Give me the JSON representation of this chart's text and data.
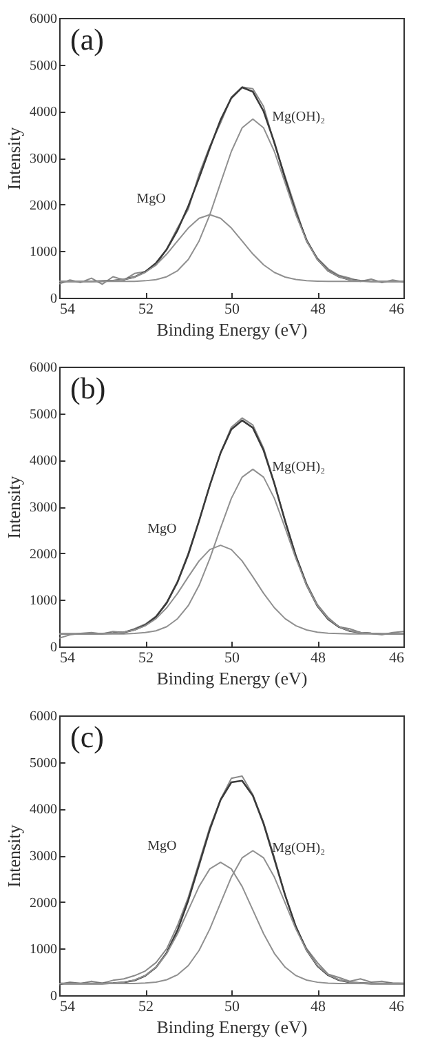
{
  "chart_data": [
    {
      "type": "line",
      "xlabel": "Binding Energy (eV)",
      "ylabel": "Intensity",
      "annotations": [
        "(a)"
      ],
      "xlim": [
        54,
        46
      ],
      "xticks": [
        54,
        52,
        50,
        48,
        46
      ],
      "ylim": [
        0,
        6000
      ],
      "yticks": [
        0,
        1000,
        2000,
        3000,
        4000,
        5000,
        6000
      ],
      "x": [
        54,
        53.75,
        53.5,
        53.25,
        53,
        52.75,
        52.5,
        52.25,
        52,
        51.75,
        51.5,
        51.25,
        51,
        50.75,
        50.5,
        50.25,
        50,
        49.75,
        49.5,
        49.25,
        49,
        48.75,
        48.5,
        48.25,
        48,
        47.75,
        47.5,
        47.25,
        47,
        46.75,
        46.5,
        46.25,
        46
      ],
      "series": [
        {
          "color": "#8a8a8a",
          "values": [
            300,
            380,
            330,
            420,
            290,
            450,
            380,
            520,
            560,
            700,
            1050,
            1500,
            1900,
            2650,
            3250,
            3750,
            4300,
            4520,
            4480,
            4100,
            3300,
            2600,
            1900,
            1200,
            850,
            620,
            480,
            420,
            350,
            400,
            330,
            380,
            340
          ]
        },
        {
          "color": "#3a3a3a",
          "values": [
            350,
            350,
            350,
            350,
            356,
            366,
            391,
            445,
            557,
            744,
            1039,
            1448,
            1965,
            2570,
            3210,
            3815,
            4282,
            4510,
            4418,
            3998,
            3330,
            2556,
            1821,
            1233,
            826,
            580,
            451,
            388,
            364,
            351,
            350,
            350,
            350
          ]
        },
        {
          "name": "MgO",
          "color": "#909090",
          "values": [
            350,
            350,
            350,
            350,
            356,
            366,
            391,
            444,
            543,
            706,
            938,
            1218,
            1495,
            1703,
            1780,
            1703,
            1495,
            1218,
            938,
            706,
            543,
            444,
            391,
            366,
            356,
            350,
            350,
            350,
            350,
            350,
            350,
            350,
            350
          ]
        },
        {
          "name": "Mg(OH)₂",
          "color": "#909090",
          "values": [
            350,
            350,
            350,
            350,
            350,
            350,
            350,
            351,
            364,
            388,
            451,
            580,
            820,
            1217,
            1780,
            2462,
            3137,
            3642,
            3830,
            3642,
            3137,
            2462,
            1780,
            1217,
            820,
            580,
            451,
            388,
            364,
            351,
            350,
            350,
            350
          ]
        }
      ]
    },
    {
      "type": "line",
      "xlabel": "Binding Energy (eV)",
      "ylabel": "Intensity",
      "annotations": [
        "(b)"
      ],
      "xlim": [
        54,
        46
      ],
      "xticks": [
        54,
        52,
        50,
        48,
        46
      ],
      "ylim": [
        0,
        6000
      ],
      "yticks": [
        0,
        1000,
        2000,
        3000,
        4000,
        5000,
        6000
      ],
      "x": [
        54,
        53.75,
        53.5,
        53.25,
        53,
        52.75,
        52.5,
        52.25,
        52,
        51.75,
        51.5,
        51.25,
        51,
        50.75,
        50.5,
        50.25,
        50,
        49.75,
        49.5,
        49.25,
        49,
        48.75,
        48.5,
        48.25,
        48,
        47.75,
        47.5,
        47.25,
        47,
        46.75,
        46.5,
        46.25,
        46
      ],
      "series": [
        {
          "color": "#8a8a8a",
          "values": [
            180,
            250,
            280,
            300,
            270,
            320,
            300,
            380,
            480,
            650,
            950,
            1400,
            2000,
            2700,
            3450,
            4150,
            4700,
            4900,
            4750,
            4250,
            3500,
            2700,
            1950,
            1350,
            900,
            620,
            420,
            380,
            300,
            280,
            250,
            300,
            320
          ]
        },
        {
          "color": "#3a3a3a",
          "values": [
            270,
            270,
            270,
            270,
            276,
            284,
            303,
            358,
            459,
            636,
            936,
            1381,
            1973,
            2693,
            3456,
            4151,
            4654,
            4849,
            4691,
            4204,
            3493,
            2688,
            1937,
            1316,
            868,
            586,
            420,
            332,
            296,
            280,
            270,
            270,
            270
          ]
        },
        {
          "name": "MgO",
          "color": "#909090",
          "values": [
            270,
            270,
            270,
            270,
            276,
            285,
            306,
            354,
            445,
            597,
            831,
            1140,
            1494,
            1834,
            2079,
            2170,
            2079,
            1834,
            1494,
            1140,
            831,
            597,
            445,
            354,
            306,
            285,
            276,
            270,
            270,
            270,
            270,
            270,
            270
          ]
        },
        {
          "name": "Mg(OH)₂",
          "color": "#909090",
          "values": [
            270,
            270,
            270,
            270,
            270,
            270,
            270,
            281,
            298,
            337,
            425,
            595,
            877,
            1311,
            1887,
            2543,
            3175,
            3630,
            3800,
            3630,
            3175,
            2543,
            1887,
            1311,
            877,
            595,
            425,
            337,
            298,
            281,
            270,
            270,
            270
          ]
        }
      ]
    },
    {
      "type": "line",
      "xlabel": "Binding Energy (eV)",
      "ylabel": "Intensity",
      "annotations": [
        "(c)"
      ],
      "xlim": [
        54,
        46
      ],
      "xticks": [
        54,
        52,
        50,
        48,
        46
      ],
      "ylim": [
        0,
        6000
      ],
      "yticks": [
        0,
        1000,
        2000,
        3000,
        4000,
        5000,
        6000
      ],
      "x": [
        54,
        53.75,
        53.5,
        53.25,
        53,
        52.75,
        52.5,
        52.25,
        52,
        51.75,
        51.5,
        51.25,
        51,
        50.75,
        50.5,
        50.25,
        50,
        49.75,
        49.5,
        49.25,
        49,
        48.75,
        48.5,
        48.25,
        48,
        47.75,
        47.5,
        47.25,
        47,
        46.75,
        46.5,
        46.25,
        46
      ],
      "series": [
        {
          "color": "#8a8a8a",
          "values": [
            230,
            280,
            250,
            300,
            260,
            320,
            350,
            420,
            520,
            700,
            1000,
            1500,
            2100,
            2850,
            3600,
            4200,
            4650,
            4700,
            4300,
            3700,
            2950,
            2150,
            1450,
            1000,
            700,
            450,
            380,
            300,
            350,
            280,
            300,
            260,
            250
          ]
        },
        {
          "color": "#3a3a3a",
          "values": [
            250,
            250,
            250,
            250,
            250,
            259,
            276,
            318,
            417,
            598,
            914,
            1394,
            2036,
            2792,
            3554,
            4190,
            4566,
            4599,
            4279,
            3676,
            2916,
            2144,
            1472,
            964,
            627,
            430,
            326,
            278,
            260,
            250,
            250,
            250,
            250
          ]
        },
        {
          "name": "MgO",
          "color": "#909090",
          "values": [
            250,
            250,
            250,
            250,
            250,
            260,
            279,
            325,
            422,
            601,
            897,
            1319,
            1828,
            2333,
            2710,
            2850,
            2710,
            2333,
            1828,
            1319,
            897,
            601,
            422,
            325,
            279,
            260,
            250,
            250,
            250,
            250,
            250,
            250,
            250
          ]
        },
        {
          "name": "Mg(OH)₂",
          "color": "#909090",
          "values": [
            250,
            250,
            250,
            250,
            250,
            250,
            250,
            250,
            261,
            281,
            333,
            438,
            635,
            960,
            1421,
            1980,
            2533,
            2946,
            3100,
            2946,
            2533,
            1980,
            1421,
            960,
            635,
            438,
            333,
            281,
            261,
            250,
            250,
            250,
            250
          ]
        }
      ]
    }
  ]
}
